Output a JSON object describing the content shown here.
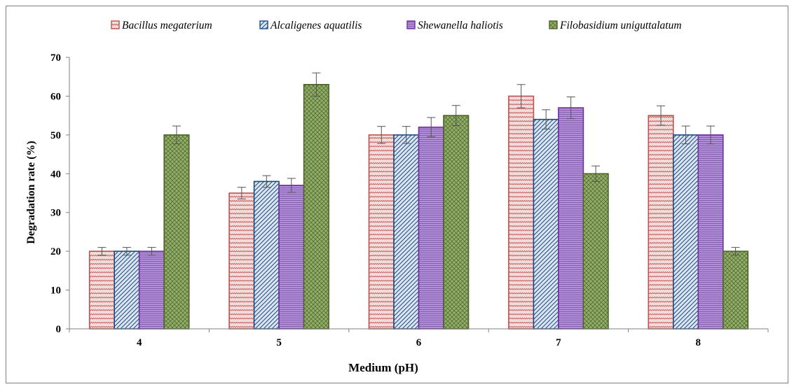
{
  "chart_data": {
    "type": "bar",
    "title": "",
    "xlabel": "Medium (pH)",
    "ylabel": "Degradation rate (%)",
    "ylim": [
      0,
      70
    ],
    "yticks": [
      "0",
      "10",
      "20",
      "30",
      "40",
      "50",
      "60",
      "70"
    ],
    "categories": [
      "4",
      "5",
      "6",
      "7",
      "8"
    ],
    "legend_position": "top",
    "grid": false,
    "series": [
      {
        "name": "Bacillus megaterium",
        "values": [
          20,
          35,
          50,
          60,
          55
        ],
        "errors": [
          1,
          1.5,
          2.2,
          3,
          2.5
        ],
        "color": "#c0504d",
        "fill": "#f2dcdb",
        "pattern": "zigzag"
      },
      {
        "name": "Alcaligenes aquatilis",
        "values": [
          20,
          38,
          50,
          54,
          50
        ],
        "errors": [
          1,
          1.5,
          2.2,
          2.5,
          2.3
        ],
        "color": "#1f497d",
        "fill": "#dbe5f1",
        "pattern": "diagonal"
      },
      {
        "name": "Shewanella haliotis",
        "values": [
          20,
          37,
          52,
          57,
          50
        ],
        "errors": [
          1,
          1.8,
          2.5,
          2.8,
          2.3
        ],
        "color": "#7030a0",
        "fill": "#b08fd8",
        "pattern": "horizontal"
      },
      {
        "name": "Filobasidium uniguttalatum",
        "values": [
          50,
          63,
          55,
          40,
          20
        ],
        "errors": [
          2.3,
          3,
          2.6,
          2,
          1
        ],
        "color": "#4f6228",
        "fill": "#8fae69",
        "pattern": "crosshatch"
      }
    ]
  }
}
